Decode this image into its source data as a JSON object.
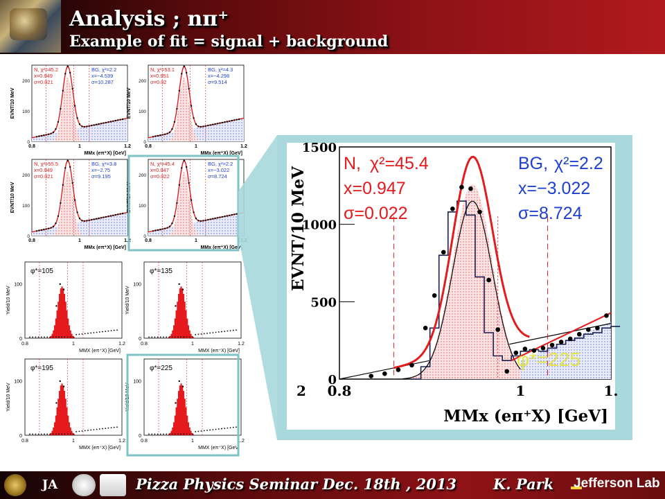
{
  "header": {
    "title": "Analysis ; nπ⁺",
    "subtitle": "Example of fit = signal + background"
  },
  "footer": {
    "talk": "Pizza Physics Seminar Dec. 18th , 2013",
    "author": "K. Park",
    "lab": "Jefferson Lab",
    "logo_text": "JA"
  },
  "colors": {
    "signal": "#e41a1c",
    "background_fit": "#1f3fd0",
    "highlight_frame": "#7fc3c6",
    "phi_label": "#e6e62a"
  },
  "fit_panels": [
    {
      "n_label": "N, χ²=45.2",
      "x_label": "x=0.949",
      "s_label": "σ=0.021",
      "bg_label": "BG, χ²=2.2",
      "bgx_label": "x=−4.539",
      "bgs_label": "σ=10.287",
      "ylabel": "EVNT/10 MeV",
      "xlabel": "MMx (eπ⁺X) [GeV]",
      "ticks_x": [
        "0.8",
        "1",
        "1.2"
      ],
      "ticks_y": [
        "0",
        "100",
        "200"
      ]
    },
    {
      "n_label": "N, χ²=53.1",
      "x_label": "x=0.951",
      "s_label": "σ=0.02",
      "bg_label": "BG, χ²=4.3",
      "bgx_label": "x=−4.298",
      "bgs_label": "σ=9.514",
      "ylabel": "EVNT/10 MeV",
      "xlabel": "MMx (eπ⁺X) [GeV]",
      "ticks_x": [
        "0.8",
        "1",
        "1.2"
      ],
      "ticks_y": [
        "0",
        "100",
        "200"
      ]
    },
    {
      "n_label": "N, χ²=55.5",
      "x_label": "x=0.949",
      "s_label": "σ=0.021",
      "bg_label": "BG, χ²=3.8",
      "bgx_label": "x=−2.75",
      "bgs_label": "σ=9.195",
      "ylabel": "EVNT/10 MeV",
      "xlabel": "MMx (eπ⁺X) [GeV]",
      "ticks_x": [
        "0.8",
        "1",
        "1.2"
      ],
      "ticks_y": [
        "0",
        "100",
        "200"
      ]
    },
    {
      "n_label": "N, χ²=45.4",
      "x_label": "x=0.947",
      "s_label": "σ=0.022",
      "bg_label": "BG, χ²=2.2",
      "bgx_label": "x=−3.022",
      "bgs_label": "σ=8.724",
      "ylabel": "EVNT/10 MeV",
      "xlabel": "MMx (eπ⁺X) [GeV]",
      "ticks_x": [
        "0.8",
        "1",
        "1.2"
      ],
      "ticks_y": [
        "0",
        "100",
        "200"
      ]
    }
  ],
  "yield_panels": [
    {
      "phi_label": "φ*=105",
      "ylabel": "Yield/10 MeV",
      "xlabel": "MMX (eπ⁺X) [GeV]",
      "ticks_x": [
        "0.8",
        "1",
        "1.2"
      ],
      "ticks_y": [
        "0",
        "100"
      ]
    },
    {
      "phi_label": "φ*=135",
      "ylabel": "Yield/10 MeV",
      "xlabel": "MMX (eπ⁺X) [GeV]",
      "ticks_x": [
        "0.8",
        "1",
        "1.2"
      ],
      "ticks_y": [
        "0",
        "100"
      ]
    },
    {
      "phi_label": "φ*=195",
      "ylabel": "Yield/10 MeV",
      "xlabel": "MMX (eπ⁺X) [GeV]",
      "ticks_x": [
        "0.8",
        "1",
        "1.2"
      ],
      "ticks_y": [
        "0",
        "100"
      ]
    },
    {
      "phi_label": "φ*=225",
      "ylabel": "Yield/10 MeV",
      "xlabel": "MMX (eπ⁺X) [GeV]",
      "ticks_x": [
        "0.8",
        "1",
        "1.2"
      ],
      "ticks_y": [
        "0",
        "100"
      ]
    }
  ],
  "chart_data": {
    "type": "line",
    "title": "",
    "xlabel": "MMx (eπ⁺X) [GeV]",
    "ylabel": "EVNT/10 MeV",
    "xlim": [
      0.8,
      1.1
    ],
    "ylim": [
      0,
      1500
    ],
    "x_ticks": [
      "0.8",
      "1",
      "1."
    ],
    "y_ticks": [
      "0",
      "500",
      "1000",
      "1500"
    ],
    "left_edge_label": "2",
    "annotations": {
      "signal": {
        "label": "N,",
        "chi2": "χ²=45.4",
        "mean": "x=0.947",
        "sigma": "σ=0.022"
      },
      "background": {
        "label": "BG,",
        "chi2": "χ²=2.2",
        "mean": "x=−3.022",
        "sigma": "σ=8.724"
      },
      "phi": "φ*=225"
    },
    "cut_lines": [
      0.86,
      0.975,
      1.03
    ],
    "series": [
      {
        "name": "data",
        "x": [
          0.835,
          0.85,
          0.865,
          0.88,
          0.895,
          0.905,
          0.915,
          0.925,
          0.935,
          0.945,
          0.955,
          0.965,
          0.975,
          0.985,
          0.995,
          1.005,
          1.015,
          1.025,
          1.035,
          1.045,
          1.055,
          1.065,
          1.075,
          1.085,
          1.095
        ],
        "y": [
          20,
          35,
          60,
          90,
          330,
          540,
          820,
          1100,
          1240,
          1230,
          1080,
          640,
          320,
          50,
          170,
          195,
          185,
          200,
          220,
          240,
          260,
          290,
          320,
          330,
          410
        ]
      },
      {
        "name": "histogram",
        "x": [
          0.88,
          0.89,
          0.9,
          0.91,
          0.92,
          0.93,
          0.94,
          0.95,
          0.96,
          0.97,
          0.98,
          0.99,
          1.0,
          1.01,
          1.02,
          1.03,
          1.04,
          1.05,
          1.06,
          1.07,
          1.08,
          1.09,
          1.1
        ],
        "y": [
          0,
          80,
          330,
          800,
          1080,
          1150,
          1060,
          660,
          300,
          150,
          120,
          150,
          180,
          190,
          180,
          200,
          225,
          250,
          265,
          290,
          300,
          330,
          340
        ]
      }
    ]
  }
}
